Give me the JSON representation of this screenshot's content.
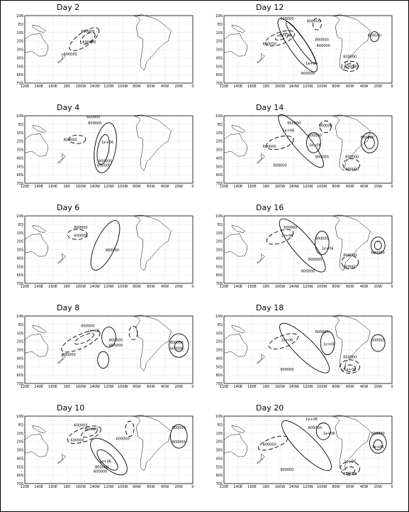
{
  "x_ticks": [
    "120E",
    "140E",
    "160E",
    "180",
    "160W",
    "140W",
    "120W",
    "100W",
    "80W",
    "60W",
    "40W",
    "20W",
    "0"
  ],
  "y_ticks": [
    "10N",
    "EQ",
    "10S",
    "20S",
    "30S",
    "40S",
    "50S",
    "60S",
    "70S"
  ],
  "panels": [
    {
      "title": "Day 2",
      "labels": [
        "600000",
        "600000",
        "600000"
      ]
    },
    {
      "title": "Day 4",
      "labels": [
        "600000",
        "800000",
        "800000",
        "1e+06",
        "800000",
        "600000"
      ]
    },
    {
      "title": "Day 6",
      "labels": [
        "600000",
        "600000",
        "800000"
      ]
    },
    {
      "title": "Day 8",
      "labels": [
        "600000",
        "1e+06",
        "800000",
        "600000",
        "600000",
        "800000",
        "600000"
      ]
    },
    {
      "title": "Day 10",
      "labels": [
        "600000",
        "800000",
        "600000",
        "600000",
        "1e+06",
        "800000",
        "600000",
        "600000",
        "600000"
      ]
    },
    {
      "title": "Day 12",
      "labels": [
        "600000",
        "1e+06",
        "600000",
        "600000",
        "800000",
        "600000",
        "1e+06",
        "600000",
        "600000",
        "800000",
        "600000"
      ]
    },
    {
      "title": "Day 14",
      "labels": [
        "600000",
        "1e+06",
        "600000",
        "600000",
        "600000",
        "1e+06",
        "800000",
        "600000",
        "600000",
        "800000",
        "900000"
      ]
    },
    {
      "title": "Day 16",
      "labels": [
        "600000",
        "1e+06",
        "600000",
        "1e+06",
        "800000",
        "600000",
        "600000",
        "800000",
        "600000"
      ]
    },
    {
      "title": "Day 18",
      "labels": [
        "1e+06",
        "600000",
        "1e+06",
        "900000",
        "600000",
        "1e+06",
        "600000"
      ]
    },
    {
      "title": "Day 20",
      "labels": [
        "1e+06",
        "600000",
        "1e+06",
        "600000",
        "900000",
        "1e+06",
        "1e+06",
        "600000",
        "600000"
      ]
    }
  ]
}
